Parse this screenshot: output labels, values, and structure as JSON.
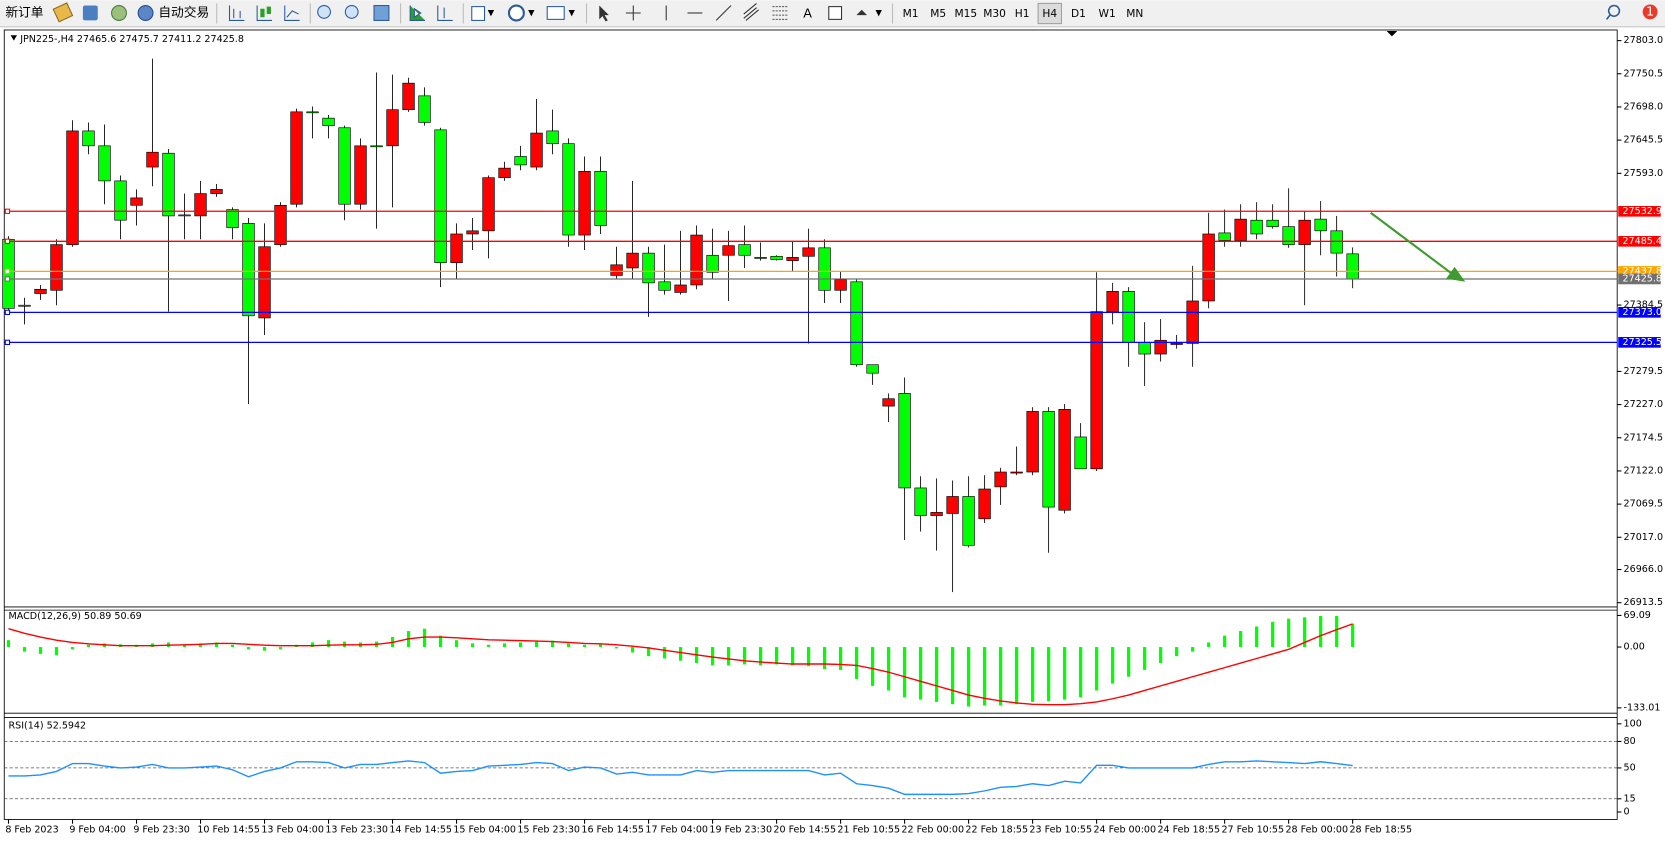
{
  "toolbar": {
    "new_order": "新订单",
    "auto_trading": "自动交易",
    "timeframes": [
      "M1",
      "M5",
      "M15",
      "M30",
      "H1",
      "H4",
      "D1",
      "W1",
      "MN"
    ],
    "active": "H4",
    "notifications": 1
  },
  "chart_data": [
    {
      "type": "candlestick",
      "title": "JPN225-,H4  27465.6 27475.7 27411.2 27425.8",
      "up_color": "#ff0000",
      "down_color": "#00ff00",
      "x": [
        "8 Feb 2023",
        null,
        null,
        null,
        "9 Feb 04:00",
        null,
        null,
        null,
        "9 Feb 23:30",
        null,
        null,
        null,
        "10 Feb 14:55",
        null,
        null,
        null,
        "13 Feb 04:00",
        null,
        null,
        null,
        "13 Feb 23:30",
        null,
        null,
        null,
        "14 Feb 14:55",
        null,
        null,
        null,
        "15 Feb 04:00",
        null,
        null,
        null,
        "15 Feb 23:30",
        null,
        null,
        null,
        "16 Feb 14:55",
        null,
        null,
        null,
        "17 Feb 04:00",
        null,
        null,
        null,
        "19 Feb 23:30",
        null,
        null,
        null,
        "20 Feb 14:55",
        null,
        null,
        null,
        "21 Feb 10:55",
        null,
        null,
        null,
        "22 Feb 00:00",
        null,
        null,
        null,
        "22 Feb 18:55",
        null,
        null,
        null,
        "23 Feb 10:55",
        null,
        null,
        null,
        "24 Feb 00:00",
        null,
        null,
        null,
        "24 Feb 18:55",
        null,
        null,
        null,
        "27 Feb 10:55",
        null,
        null,
        null,
        "28 Feb 00:00",
        null,
        null,
        null,
        "28 Feb 18:55"
      ],
      "open": [
        27488.6,
        27384.3,
        27402.8,
        27407.9,
        27480.2,
        27660.1,
        27636.5,
        27581.0,
        27542.4,
        27602.9,
        27624.8,
        27527.2,
        27525.6,
        27560.9,
        27535.6,
        27513.8,
        27364.1,
        27480.2,
        27544.1,
        27690.3,
        27680.3,
        27665.1,
        27544.1,
        27636.5,
        27636.5,
        27693.7,
        27715.6,
        27661.8,
        27451.6,
        27497.0,
        27502.0,
        27586.1,
        27619.7,
        27602.9,
        27660.1,
        27639.9,
        27495.3,
        27596.2,
        27431.4,
        27443.2,
        27466.7,
        27421.3,
        27404.5,
        27416.3,
        27463.3,
        27463.3,
        27480.2,
        27460.0,
        27461.7,
        27454.9,
        27461.7,
        27475.1,
        27407.9,
        27421.3,
        27290.1,
        27224.6,
        27244.7,
        27095.1,
        27051.4,
        27054.7,
        27081.6,
        27046.3,
        27096.8,
        27118.6,
        27120.3,
        27216.2,
        27059.8,
        27175.8,
        27125.4,
        27374.2,
        27406.2,
        27325.5,
        27307.0,
        27322.1,
        27323.8,
        27391.0,
        27498.7,
        27486.9,
        27518.8,
        27518.8,
        27508.7,
        27480.2,
        27520.5,
        27502.0,
        27465.6
      ],
      "high": [
        27493.6,
        27396.1,
        27416.3,
        27488.6,
        27676.9,
        27673.5,
        27670.2,
        27589.5,
        27567.6,
        27774.4,
        27631.5,
        27560.9,
        27581.0,
        27576.0,
        27539.0,
        27522.2,
        27513.8,
        27547.4,
        27695.4,
        27698.7,
        27685.3,
        27668.5,
        27648.3,
        27752.6,
        27749.2,
        27744.2,
        27729.0,
        27665.1,
        27513.8,
        27522.2,
        27589.5,
        27611.3,
        27636.5,
        27710.5,
        27693.7,
        27648.3,
        27619.7,
        27619.7,
        27476.8,
        27581.0,
        27476.8,
        27480.2,
        27502.0,
        27510.4,
        27505.4,
        27502.0,
        27510.4,
        27483.5,
        27463.3,
        27485.2,
        27505.4,
        27488.6,
        27438.1,
        27426.3,
        27290.1,
        27244.7,
        27269.9,
        27113.6,
        27110.2,
        27106.9,
        27113.6,
        27115.3,
        27127.0,
        27160.7,
        27222.9,
        27222.9,
        27227.9,
        27197.7,
        27436.4,
        27419.6,
        27412.9,
        27357.4,
        27362.4,
        27337.2,
        27446.5,
        27530.6,
        27535.6,
        27544.1,
        27547.4,
        27544.1,
        27569.3,
        27532.3,
        27549.1,
        27525.6,
        27475.7
      ],
      "low": [
        27370.9,
        27354.0,
        27392.7,
        27384.3,
        27476.8,
        27623.1,
        27544.1,
        27488.6,
        27510.4,
        27572.6,
        27374.2,
        27488.6,
        27488.6,
        27555.8,
        27488.6,
        27227.9,
        27337.2,
        27476.8,
        27539.0,
        27648.3,
        27648.3,
        27518.8,
        27535.6,
        27505.4,
        27539.0,
        27690.3,
        27668.5,
        27412.9,
        27426.3,
        27471.7,
        27458.3,
        27581.0,
        27597.9,
        27597.9,
        27623.1,
        27476.8,
        27471.7,
        27497.0,
        27426.3,
        27426.3,
        27365.8,
        27401.1,
        27401.1,
        27409.5,
        27426.3,
        27391.0,
        27443.2,
        27454.9,
        27454.9,
        27438.1,
        27323.8,
        27387.7,
        27387.7,
        27286.8,
        27258.2,
        27199.3,
        27012.7,
        27026.1,
        26995.9,
        26930.3,
        27000.9,
        27039.6,
        27068.2,
        27115.3,
        27115.3,
        26992.5,
        27054.7,
        27125.4,
        27122.0,
        27354.0,
        27286.8,
        27256.5,
        27295.2,
        27315.4,
        27286.8,
        27379.3,
        27476.8,
        27476.8,
        27488.6,
        27505.4,
        27475.1,
        27384.3,
        27463.3,
        27429.7,
        27411.2
      ],
      "close": [
        27379.3,
        27382.6,
        27409.5,
        27480.2,
        27660.1,
        27636.5,
        27581.0,
        27518.8,
        27554.1,
        27626.4,
        27525.6,
        27525.6,
        27560.9,
        27567.6,
        27507.1,
        27367.5,
        27476.8,
        27542.4,
        27690.3,
        27688.7,
        27668.5,
        27544.1,
        27636.5,
        27634.9,
        27693.7,
        27735.7,
        27673.5,
        27451.6,
        27497.0,
        27502.0,
        27586.1,
        27601.2,
        27606.3,
        27656.7,
        27639.9,
        27495.3,
        27596.2,
        27510.4,
        27448.2,
        27466.7,
        27419.6,
        27407.9,
        27416.3,
        27495.3,
        27436.4,
        27478.5,
        27463.3,
        27458.3,
        27456.6,
        27460.0,
        27475.1,
        27407.9,
        27424.7,
        27290.1,
        27276.7,
        27236.3,
        27095.1,
        27051.4,
        27056.4,
        27081.6,
        27004.3,
        27093.4,
        27120.3,
        27120.3,
        27216.2,
        27064.8,
        27219.5,
        27125.4,
        27374.2,
        27406.2,
        27325.5,
        27307.0,
        27328.8,
        27323.8,
        27391.0,
        27497.0,
        27486.9,
        27520.5,
        27497.0,
        27508.7,
        27480.2,
        27518.8,
        27502.0,
        27466.7,
        27425.8
      ],
      "ylim": [
        26913.5,
        27803.0
      ],
      "yticks": [
        {
          "value": 27803.0,
          "label": "27803.0"
        },
        27750.5,
        {
          "value": 27698.0,
          "label": "27698.0"
        },
        27645.5,
        {
          "value": 27593.0,
          "label": "27593.0"
        },
        27384.5,
        27279.5,
        {
          "value": 27227.0,
          "label": "27227.0"
        },
        27174.5,
        {
          "value": 27122.0,
          "label": "27122.0"
        },
        27069.5,
        {
          "value": 27017.0,
          "label": "27017.0"
        },
        {
          "value": 26966.0,
          "label": "26966.0"
        },
        26913.5
      ],
      "hlines": [
        {
          "value": 27532.9,
          "label": "27532.9",
          "color": "#ff0000"
        },
        {
          "value": 27485.4,
          "label": "27485.4",
          "color": "#ff0000"
        },
        {
          "value": 27437.8,
          "label": "27437.8",
          "color": "#ffa500"
        },
        {
          "value": 27425.8,
          "label": "27425.8",
          "color": "#707070"
        },
        {
          "value": 27373.0,
          "label": "27373.0",
          "color": "#0000ff"
        },
        {
          "value": 27325.5,
          "label": "27325.5",
          "color": "#0000ff"
        }
      ]
    },
    {
      "type": "macd",
      "title": "MACD(12,26,9) 50.89 50.69",
      "series": [
        {
          "color": "#00ff00",
          "style": "bar",
          "values": [
            15,
            -10,
            -15,
            -18,
            -5,
            5,
            8,
            6,
            5,
            8,
            10,
            5,
            8,
            10,
            5,
            -5,
            -8,
            -5,
            5,
            10,
            15,
            12,
            10,
            12,
            22,
            35,
            40,
            25,
            15,
            8,
            5,
            8,
            10,
            12,
            14,
            8,
            5,
            6,
            -3,
            -12,
            -20,
            -25,
            -30,
            -35,
            -40,
            -40,
            -38,
            -40,
            -38,
            -40,
            -42,
            -48,
            -50,
            -70,
            -85,
            -95,
            -110,
            -115,
            -120,
            -125,
            -130,
            -128,
            -128,
            -125,
            -120,
            -118,
            -115,
            -110,
            -95,
            -80,
            -65,
            -50,
            -35,
            -20,
            -10,
            10,
            25,
            35,
            45,
            55,
            62,
            65,
            68,
            68,
            50.89
          ]
        },
        {
          "color": "#ff0000",
          "style": "line",
          "values": [
            40,
            30,
            22,
            15,
            10,
            7,
            5,
            3,
            3,
            3,
            4,
            5,
            6,
            8,
            8,
            6,
            4,
            3,
            3,
            3,
            4,
            5,
            5,
            6,
            10,
            18,
            22,
            22,
            20,
            18,
            16,
            15,
            14,
            13,
            12,
            10,
            8,
            7,
            5,
            2,
            -2,
            -7,
            -12,
            -17,
            -22,
            -26,
            -30,
            -33,
            -35,
            -37,
            -37,
            -37,
            -38,
            -40,
            -47,
            -55,
            -65,
            -75,
            -85,
            -95,
            -105,
            -112,
            -118,
            -122,
            -125,
            -126,
            -126,
            -124,
            -120,
            -113,
            -105,
            -95,
            -85,
            -75,
            -65,
            -55,
            -45,
            -35,
            -25,
            -15,
            -5,
            10,
            25,
            38,
            50.69
          ]
        }
      ],
      "ylim": [
        -133.01,
        69.09
      ],
      "yticks": [
        {
          "value": 69.09,
          "label": "69.09"
        },
        {
          "value": 0,
          "label": "0.00"
        },
        {
          "value": -133.01,
          "label": "-133.01"
        }
      ]
    },
    {
      "type": "line",
      "title": "RSI(14) 52.5942",
      "color": "#1e90ff",
      "values": [
        41,
        41,
        42,
        46,
        55,
        55,
        52,
        50,
        51,
        54,
        50,
        50,
        51,
        52,
        48,
        40,
        46,
        50,
        57,
        57,
        56,
        50,
        54,
        54,
        56,
        58,
        56,
        44,
        46,
        47,
        52,
        53,
        54,
        56,
        55,
        47,
        51,
        50,
        43,
        45,
        42,
        42,
        42,
        47,
        45,
        47,
        47,
        47,
        47,
        47,
        47,
        42,
        44,
        32,
        30,
        27,
        20,
        20,
        20,
        20,
        21,
        24,
        28,
        29,
        32,
        30,
        35,
        33,
        53,
        53,
        50,
        50,
        50,
        50,
        50,
        54,
        57,
        57,
        58,
        57,
        56,
        55,
        57,
        55,
        52.5942
      ],
      "ylim": [
        0,
        100
      ],
      "yticks": [
        100,
        80,
        50,
        15,
        0
      ]
    }
  ]
}
